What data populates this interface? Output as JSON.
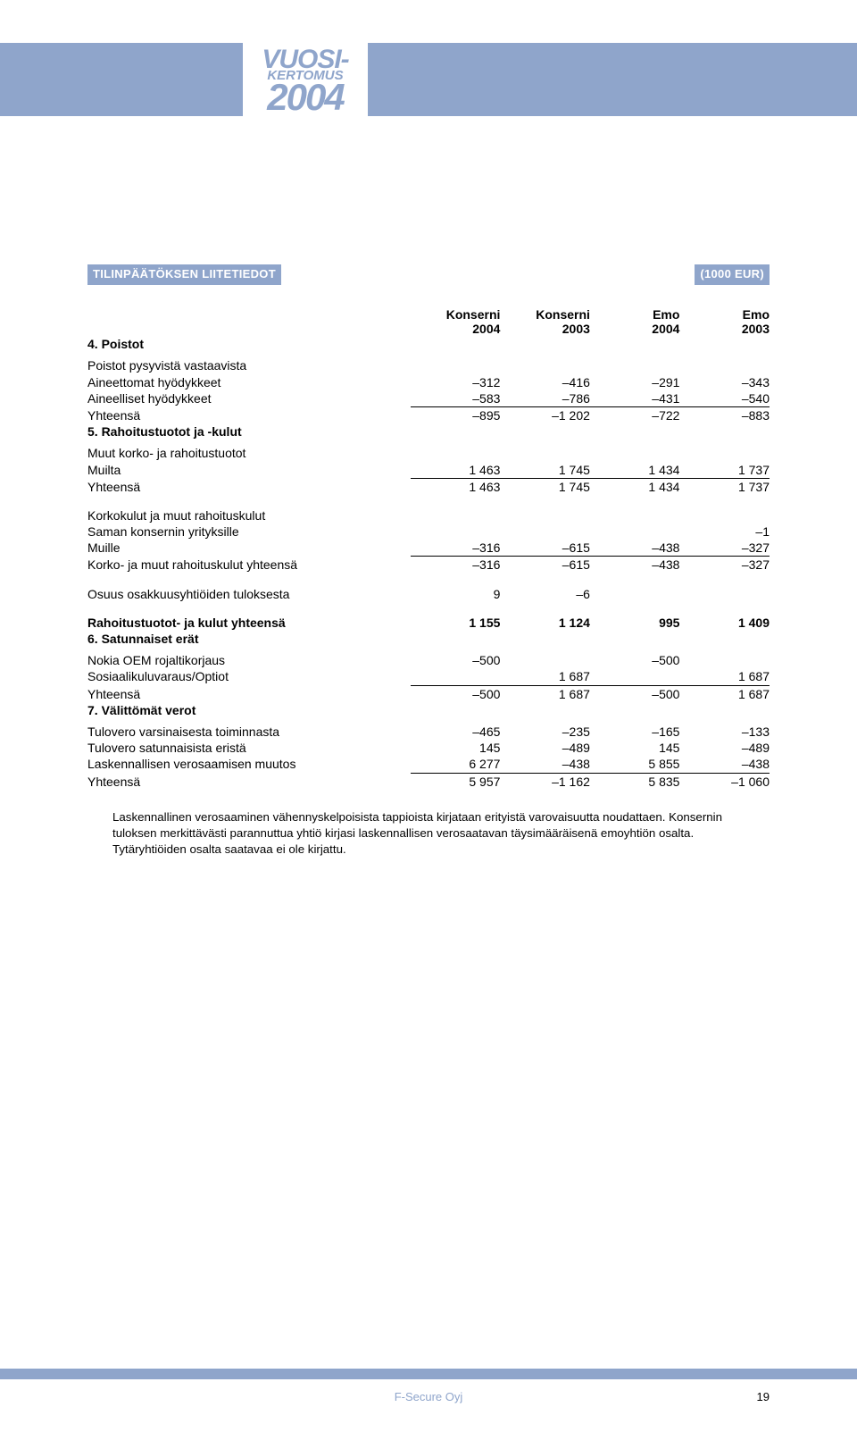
{
  "banner": {
    "line1": "VUOSI-",
    "line2": "KERTOMUS",
    "year": "2004"
  },
  "section_header_left": "TILINPÄÄTÖKSEN LIITETIEDOT",
  "section_header_right": "(1000 EUR)",
  "columns": {
    "c1a": "Konserni",
    "c1b": "2004",
    "c2a": "Konserni",
    "c2b": "2003",
    "c3a": "Emo",
    "c3b": "2004",
    "c4a": "Emo",
    "c4b": "2003"
  },
  "s4": {
    "title": "4. Poistot",
    "sub": "Poistot pysyvistä vastaavista",
    "r1": {
      "label": "Aineettomat hyödykkeet",
      "v": [
        "–312",
        "–416",
        "–291",
        "–343"
      ]
    },
    "r2": {
      "label": "Aineelliset hyödykkeet",
      "v": [
        "–583",
        "–786",
        "–431",
        "–540"
      ]
    },
    "sum": {
      "label": "Yhteensä",
      "v": [
        "–895",
        "–1 202",
        "–722",
        "–883"
      ]
    }
  },
  "s5": {
    "title": "5. Rahoitustuotot ja -kulut",
    "g1sub": "Muut korko- ja rahoitustuotot",
    "g1r1": {
      "label": "Muilta",
      "v": [
        "1 463",
        "1 745",
        "1 434",
        "1 737"
      ]
    },
    "g1sum": {
      "label": "Yhteensä",
      "v": [
        "1 463",
        "1 745",
        "1 434",
        "1 737"
      ]
    },
    "g2sub": "Korkokulut ja muut rahoituskulut",
    "g2r1": {
      "label": "Saman konsernin yrityksille",
      "v": [
        "",
        "",
        "",
        "–1"
      ]
    },
    "g2r2": {
      "label": "Muille",
      "v": [
        "–316",
        "–615",
        "–438",
        "–327"
      ]
    },
    "g2sum": {
      "label": "Korko- ja muut rahoituskulut yhteensä",
      "v": [
        "–316",
        "–615",
        "–438",
        "–327"
      ]
    },
    "g3": {
      "label": "Osuus osakkuusyhtiöiden tuloksesta",
      "v": [
        "9",
        "–6",
        "",
        ""
      ]
    },
    "total": {
      "label": "Rahoitustuotot- ja kulut yhteensä",
      "v": [
        "1 155",
        "1 124",
        "995",
        "1 409"
      ]
    }
  },
  "s6": {
    "title": "6. Satunnaiset erät",
    "r1": {
      "label": "Nokia OEM rojaltikorjaus",
      "v": [
        "–500",
        "",
        "–500",
        ""
      ]
    },
    "r2": {
      "label": "Sosiaalikuluvaraus/Optiot",
      "v": [
        "",
        "1 687",
        "",
        "1 687"
      ]
    },
    "sum": {
      "label": "Yhteensä",
      "v": [
        "–500",
        "1 687",
        "–500",
        "1 687"
      ]
    }
  },
  "s7": {
    "title": "7. Välittömät verot",
    "r1": {
      "label": "Tulovero varsinaisesta toiminnasta",
      "v": [
        "–465",
        "–235",
        "–165",
        "–133"
      ]
    },
    "r2": {
      "label": "Tulovero satunnaisista eristä",
      "v": [
        "145",
        "–489",
        "145",
        "–489"
      ]
    },
    "r3": {
      "label": "Laskennallisen verosaamisen muutos",
      "v": [
        "6 277",
        "–438",
        "5 855",
        "–438"
      ]
    },
    "sum": {
      "label": "Yhteensä",
      "v": [
        "5 957",
        "–1 162",
        "5 835",
        "–1 060"
      ]
    }
  },
  "note": "Laskennallinen verosaaminen vähennyskelpoisista tappioista kirjataan erityistä varovaisuutta noudattaen. Konsernin tuloksen merkittävästi parannuttua yhtiö kirjasi laskennallisen verosaatavan täysimääräisenä emoyhtiön osalta. Tytäryhtiöiden osalta saatavaa ei ole kirjattu.",
  "footer": {
    "company": "F-Secure Oyj",
    "page": "19"
  },
  "colors": {
    "accent": "#8fa5cb",
    "text": "#000000",
    "bg": "#ffffff"
  }
}
